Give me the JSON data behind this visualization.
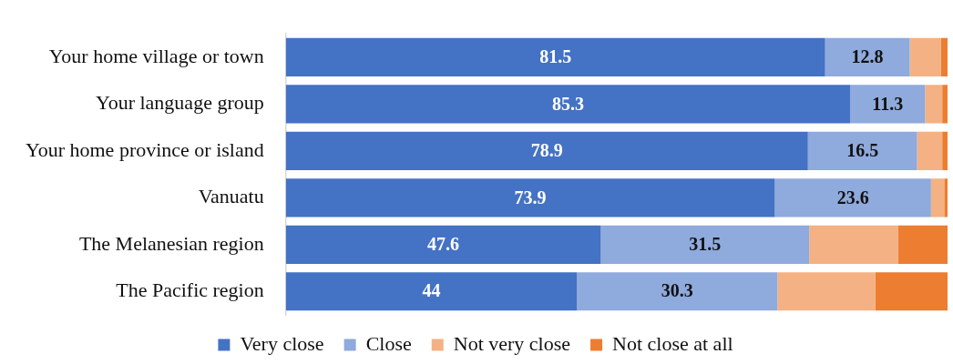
{
  "chart_data": {
    "type": "bar",
    "orientation": "horizontal",
    "stacked": true,
    "legend": "bottom",
    "tick_labels": "y",
    "categories": [
      "Your home village or town",
      "Your language group",
      "Your home province or island",
      "Vanuatu",
      "The Melanesian region",
      "The Pacific region"
    ],
    "xlim": [
      0,
      100
    ],
    "series": [
      {
        "name": "Very close",
        "color": "#4472c4",
        "values": [
          81.5,
          85.3,
          78.9,
          73.9,
          47.6,
          44
        ],
        "value_labels": [
          "81.5",
          "85.3",
          "78.9",
          "73.9",
          "47.6",
          "44"
        ]
      },
      {
        "name": "Close",
        "color": "#8faadc",
        "values": [
          12.8,
          11.3,
          16.5,
          23.6,
          31.5,
          30.3
        ],
        "value_labels": [
          "12.8",
          "11.3",
          "16.5",
          "23.6",
          "31.5",
          "30.3"
        ]
      },
      {
        "name": "Not very close",
        "color": "#f4b183",
        "values": [
          4.7,
          2.6,
          3.8,
          2.0,
          13.4,
          14.8
        ]
      },
      {
        "name": "Not close at all",
        "color": "#ed7d31",
        "values": [
          1.0,
          0.8,
          0.8,
          0.5,
          7.5,
          10.9
        ]
      }
    ]
  }
}
